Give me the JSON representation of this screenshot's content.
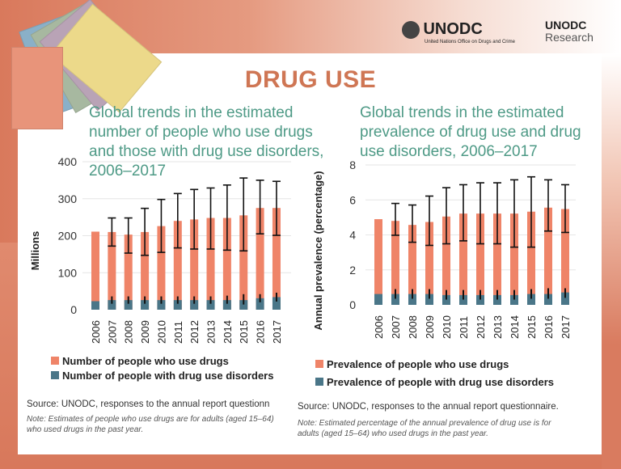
{
  "header": {
    "org_name": "UNODC",
    "org_subtitle": "United Nations Office on Drugs and Crime",
    "research_logo_line1": "UNODC",
    "research_logo_line2": "Research",
    "page_title": "DRUG USE"
  },
  "colors": {
    "users": "#ef8468",
    "disorders": "#4a7688",
    "title": "#cf7654",
    "chart_title": "#4e9a86"
  },
  "chart_data": [
    {
      "type": "bar",
      "stacked_overlay": true,
      "title": "Global trends in the estimated number of people who use drugs and those with drug use disorders, 2006–2017",
      "ylabel": "Millions",
      "ylim": [
        0,
        400
      ],
      "yticks": [
        "0",
        "100",
        "200",
        "300",
        "400"
      ],
      "grid": true,
      "categories": [
        "2006",
        "2007",
        "2008",
        "2009",
        "2010",
        "2011",
        "2012",
        "2013",
        "2014",
        "2015",
        "2016",
        "2017"
      ],
      "series": [
        {
          "name": "Number of people who use drugs",
          "values": [
            211,
            210,
            203,
            210,
            226,
            240,
            244,
            248,
            248,
            255,
            275,
            275
          ],
          "error_low": [
            null,
            172,
            153,
            147,
            155,
            167,
            164,
            164,
            161,
            159,
            205,
            201
          ],
          "error_high": [
            null,
            248,
            248,
            274,
            298,
            314,
            325,
            329,
            337,
            356,
            350,
            347
          ]
        },
        {
          "name": "Number of people with drug use disorders",
          "values": [
            23,
            26,
            26,
            26,
            26,
            26,
            26,
            26,
            26,
            26,
            31,
            34
          ],
          "error_low": [
            null,
            16,
            16,
            16,
            16,
            16,
            16,
            16,
            16,
            14,
            20,
            22
          ],
          "error_high": [
            null,
            36,
            36,
            36,
            36,
            36,
            36,
            36,
            38,
            42,
            42,
            46
          ]
        }
      ],
      "legend": "bottom",
      "source": "Source: UNODC, responses to the annual report questionn",
      "note": "Note: Estimates of people who use drugs are for adults (aged 15–64) who used drugs in the past year."
    },
    {
      "type": "bar",
      "stacked_overlay": true,
      "title": "Global trends in the estimated prevalence of drug use and drug use disorders, 2006–2017",
      "ylabel": "Annual prevalence (percentage)",
      "ylim": [
        0,
        8
      ],
      "yticks": [
        "0",
        "2",
        "4",
        "6",
        "8"
      ],
      "grid": true,
      "categories": [
        "2006",
        "2007",
        "2008",
        "2009",
        "2010",
        "2011",
        "2012",
        "2013",
        "2014",
        "2015",
        "2016",
        "2017"
      ],
      "series": [
        {
          "name": "Prevalence of people who use drugs",
          "values": [
            4.9,
            4.8,
            4.57,
            4.74,
            5.05,
            5.22,
            5.22,
            5.22,
            5.22,
            5.33,
            5.56,
            5.48
          ],
          "error_low": [
            null,
            3.98,
            3.58,
            3.4,
            3.49,
            3.66,
            3.49,
            3.49,
            3.3,
            3.3,
            4.22,
            4.14
          ],
          "error_high": [
            null,
            5.8,
            5.71,
            6.22,
            6.7,
            6.87,
            6.98,
            6.98,
            7.15,
            7.32,
            7.15,
            6.87
          ]
        },
        {
          "name": "Prevalence of people with drug use disorders",
          "values": [
            0.62,
            0.62,
            0.62,
            0.62,
            0.56,
            0.56,
            0.56,
            0.56,
            0.56,
            0.62,
            0.62,
            0.71
          ],
          "error_low": [
            null,
            0.35,
            0.35,
            0.35,
            0.3,
            0.3,
            0.3,
            0.3,
            0.3,
            0.35,
            0.35,
            0.4
          ],
          "error_high": [
            null,
            0.9,
            0.9,
            0.9,
            0.85,
            0.85,
            0.85,
            0.85,
            0.85,
            0.9,
            0.95,
            0.95
          ]
        }
      ],
      "legend": "bottom",
      "source": "Source: UNODC, responses to the annual report questionnaire.",
      "note": "Note: Estimated percentage of the annual prevalence of drug use is for adults (aged 15–64) who used drugs in the past year."
    }
  ]
}
